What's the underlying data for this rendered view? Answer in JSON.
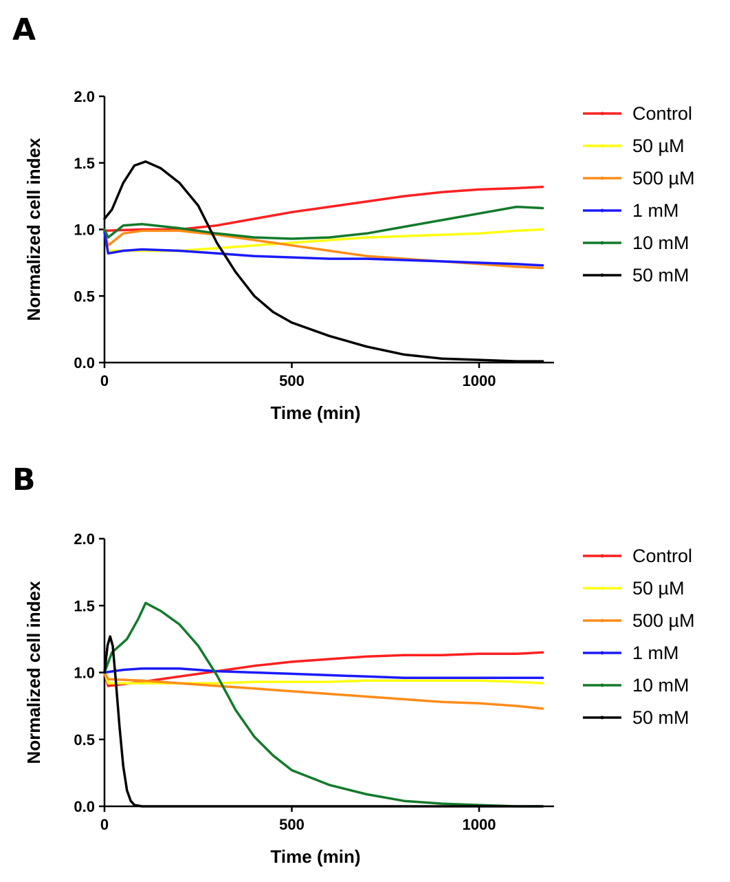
{
  "chart_data": [
    {
      "panel": "A",
      "type": "line",
      "xlabel": "Time (min)",
      "ylabel": "Normalized cell index",
      "xlim": [
        0,
        1200
      ],
      "ylim": [
        0,
        2.0
      ],
      "xticks": [
        0,
        500,
        1000
      ],
      "xtick_labels": [
        "0",
        "500",
        "1000"
      ],
      "yticks": [
        0,
        0.5,
        1.0,
        1.5,
        2.0
      ],
      "ytick_labels": [
        "0.0",
        "0.5",
        "1.0",
        "1.5",
        "2.0"
      ],
      "legend_position": "right",
      "series": [
        {
          "name": "Control",
          "color": "#ff2020",
          "x": [
            0,
            100,
            200,
            300,
            400,
            500,
            600,
            700,
            800,
            900,
            1000,
            1100,
            1170
          ],
          "y": [
            0.99,
            1.0,
            1.0,
            1.03,
            1.08,
            1.13,
            1.17,
            1.21,
            1.25,
            1.28,
            1.3,
            1.31,
            1.32
          ]
        },
        {
          "name": "50 µM",
          "color": "#ffff10",
          "x": [
            0,
            10,
            100,
            200,
            300,
            400,
            500,
            600,
            700,
            800,
            900,
            1000,
            1100,
            1170
          ],
          "y": [
            0.98,
            0.84,
            0.84,
            0.84,
            0.86,
            0.88,
            0.9,
            0.92,
            0.94,
            0.95,
            0.96,
            0.97,
            0.99,
            1.0
          ]
        },
        {
          "name": "500 µM",
          "color": "#ff8c1a",
          "x": [
            0,
            10,
            50,
            100,
            200,
            300,
            400,
            500,
            600,
            700,
            800,
            900,
            1000,
            1100,
            1170
          ],
          "y": [
            0.98,
            0.88,
            0.97,
            0.99,
            0.99,
            0.96,
            0.92,
            0.88,
            0.84,
            0.8,
            0.78,
            0.76,
            0.74,
            0.72,
            0.71
          ]
        },
        {
          "name": "1 mM",
          "color": "#1a1aff",
          "x": [
            0,
            10,
            50,
            100,
            200,
            300,
            400,
            500,
            600,
            700,
            800,
            900,
            1000,
            1100,
            1170
          ],
          "y": [
            0.98,
            0.82,
            0.84,
            0.85,
            0.84,
            0.82,
            0.8,
            0.79,
            0.78,
            0.78,
            0.77,
            0.76,
            0.75,
            0.74,
            0.73
          ]
        },
        {
          "name": "10 mM",
          "color": "#127a2a",
          "x": [
            0,
            10,
            50,
            100,
            200,
            300,
            400,
            500,
            600,
            700,
            800,
            900,
            1000,
            1100,
            1170
          ],
          "y": [
            1.0,
            0.94,
            1.03,
            1.04,
            1.01,
            0.97,
            0.94,
            0.93,
            0.94,
            0.97,
            1.02,
            1.07,
            1.12,
            1.17,
            1.16
          ]
        },
        {
          "name": " 50 mM",
          "color": "#000000",
          "x": [
            0,
            20,
            50,
            80,
            110,
            150,
            200,
            250,
            300,
            350,
            400,
            450,
            500,
            600,
            700,
            800,
            900,
            1000,
            1100,
            1170
          ],
          "y": [
            1.08,
            1.15,
            1.35,
            1.48,
            1.51,
            1.46,
            1.35,
            1.18,
            0.9,
            0.68,
            0.5,
            0.38,
            0.3,
            0.2,
            0.12,
            0.06,
            0.03,
            0.02,
            0.01,
            0.01
          ]
        }
      ]
    },
    {
      "panel": "B",
      "type": "line",
      "xlabel": "Time (min)",
      "ylabel": "Normalized cell index",
      "xlim": [
        0,
        1200
      ],
      "ylim": [
        0,
        2.0
      ],
      "xticks": [
        0,
        500,
        1000
      ],
      "xtick_labels": [
        "0",
        "500",
        "1000"
      ],
      "yticks": [
        0,
        0.5,
        1.0,
        1.5,
        2.0
      ],
      "ytick_labels": [
        "0.0",
        "0.5",
        "1.0",
        "1.5",
        "2.0"
      ],
      "legend_position": "right",
      "series": [
        {
          "name": "Control",
          "color": "#ff2020",
          "x": [
            0,
            10,
            100,
            200,
            300,
            400,
            500,
            600,
            700,
            800,
            900,
            1000,
            1100,
            1170
          ],
          "y": [
            1.0,
            0.9,
            0.93,
            0.97,
            1.01,
            1.05,
            1.08,
            1.1,
            1.12,
            1.13,
            1.13,
            1.14,
            1.14,
            1.15
          ]
        },
        {
          "name": "50 µM",
          "color": "#ffff10",
          "x": [
            0,
            10,
            100,
            200,
            300,
            400,
            500,
            600,
            700,
            800,
            900,
            1000,
            1100,
            1170
          ],
          "y": [
            1.0,
            0.92,
            0.92,
            0.92,
            0.92,
            0.93,
            0.93,
            0.93,
            0.94,
            0.94,
            0.94,
            0.94,
            0.93,
            0.92
          ]
        },
        {
          "name": "500 µM",
          "color": "#ff8c1a",
          "x": [
            0,
            10,
            100,
            200,
            300,
            400,
            500,
            600,
            700,
            800,
            900,
            1000,
            1100,
            1170
          ],
          "y": [
            1.0,
            0.95,
            0.94,
            0.92,
            0.9,
            0.88,
            0.86,
            0.84,
            0.82,
            0.8,
            0.78,
            0.77,
            0.75,
            0.73
          ]
        },
        {
          "name": "1 mM",
          "color": "#1a1aff",
          "x": [
            0,
            50,
            100,
            200,
            300,
            400,
            500,
            600,
            700,
            800,
            900,
            1000,
            1100,
            1170
          ],
          "y": [
            1.0,
            1.02,
            1.03,
            1.03,
            1.01,
            1.0,
            0.99,
            0.98,
            0.97,
            0.96,
            0.96,
            0.96,
            0.96,
            0.96
          ]
        },
        {
          "name": "10 mM",
          "color": "#127a2a",
          "x": [
            0,
            20,
            60,
            90,
            110,
            150,
            200,
            250,
            300,
            350,
            400,
            450,
            500,
            600,
            700,
            800,
            900,
            1000,
            1100,
            1170
          ],
          "y": [
            1.0,
            1.15,
            1.25,
            1.4,
            1.52,
            1.46,
            1.36,
            1.2,
            0.98,
            0.72,
            0.52,
            0.38,
            0.27,
            0.16,
            0.09,
            0.04,
            0.02,
            0.01,
            0.0,
            0.0
          ]
        },
        {
          "name": " 50 mM",
          "color": "#000000",
          "x": [
            0,
            8,
            15,
            22,
            30,
            40,
            50,
            60,
            70,
            80,
            100,
            200,
            400,
            600,
            800,
            1000,
            1170
          ],
          "y": [
            1.0,
            1.2,
            1.27,
            1.2,
            0.95,
            0.6,
            0.3,
            0.12,
            0.04,
            0.01,
            0.0,
            0.0,
            0.0,
            0.0,
            0.0,
            0.0,
            0.0
          ]
        }
      ]
    }
  ]
}
